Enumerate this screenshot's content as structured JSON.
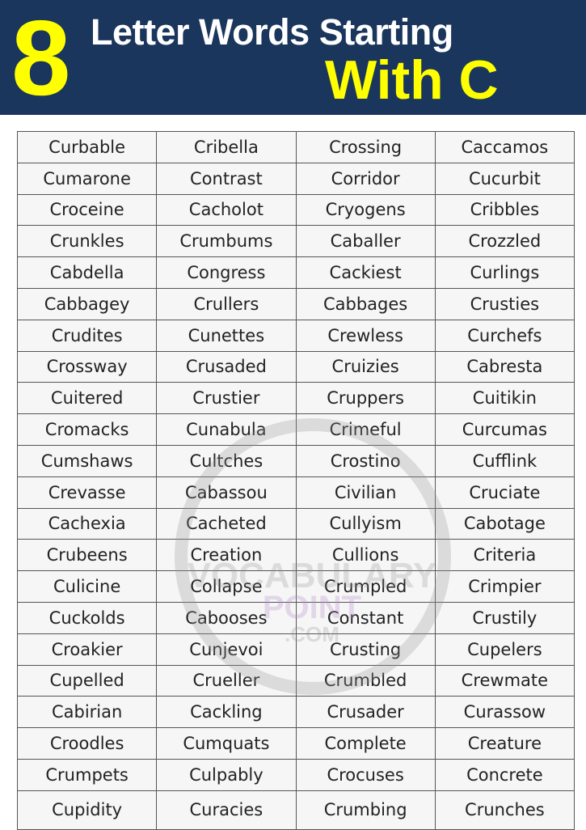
{
  "header": {
    "number": "8",
    "title_line1": "Letter Words Starting",
    "title_line2": "With C"
  },
  "colors": {
    "header_bg": "#1a365d",
    "accent_yellow": "#ffff00",
    "title_white": "#ffffff"
  },
  "watermark": {
    "line1": "VOCABULARY",
    "line2": "POINT",
    "line3": ".COM"
  },
  "table": {
    "rows": [
      [
        "Curbable",
        "Cribella",
        "Crossing",
        "Caccamos"
      ],
      [
        "Cumarone",
        "Contrast",
        "Corridor",
        "Cucurbit"
      ],
      [
        "Croceine",
        "Cacholot",
        "Cryogens",
        "Cribbles"
      ],
      [
        "Crunkles",
        "Crumbums",
        "Caballer",
        "Crozzled"
      ],
      [
        "Cabdella",
        "Congress",
        "Cackiest",
        "Curlings"
      ],
      [
        "Cabbagey",
        "Crullers",
        "Cabbages",
        "Crusties"
      ],
      [
        "Crudites",
        "Cunettes",
        "Crewless",
        "Curchefs"
      ],
      [
        "Crossway",
        "Crusaded",
        "Cruizies",
        "Cabresta"
      ],
      [
        "Cuitered",
        "Crustier",
        "Cruppers",
        "Cuitikin"
      ],
      [
        "Cromacks",
        "Cunabula",
        "Crimeful",
        "Curcumas"
      ],
      [
        "Cumshaws",
        "Cultches",
        "Crostino",
        "Cufflink"
      ],
      [
        "Crevasse",
        "Cabassou",
        "Civilian",
        "Cruciate"
      ],
      [
        "Cachexia",
        "Cacheted",
        "Cullyism",
        "Cabotage"
      ],
      [
        "Crubeens",
        "Creation",
        "Cullions",
        "Criteria"
      ],
      [
        "Culicine",
        "Collapse",
        "Crumpled",
        "Crimpier"
      ],
      [
        "Cuckolds",
        "Cabooses",
        "Constant",
        "Crustily"
      ],
      [
        "Croakier",
        "Cunjevoi",
        "Crusting",
        "Cupelers"
      ],
      [
        "Cupelled",
        "Crueller",
        "Crumbled",
        "Crewmate"
      ],
      [
        "Cabirian",
        "Cackling",
        "Crusader",
        "Curassow"
      ],
      [
        "Croodles",
        "Cumquats",
        "Complete",
        "Creature"
      ],
      [
        "Crumpets",
        "Culpably",
        "Crocuses",
        "Concrete"
      ],
      [
        "Cupidity",
        "Curacies",
        "Crumbing",
        "Crunches"
      ]
    ]
  }
}
